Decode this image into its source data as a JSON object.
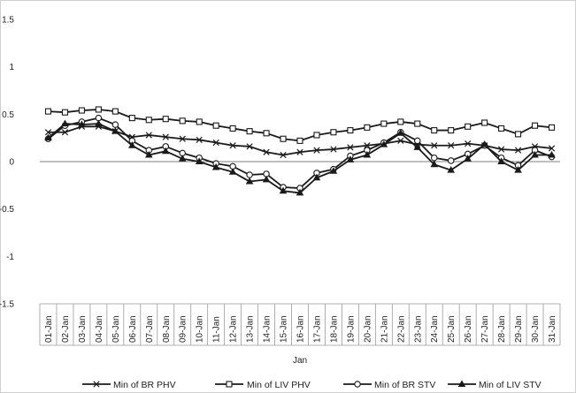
{
  "chart_data": {
    "type": "line",
    "title": "",
    "xlabel": "Jan",
    "ylabel": "",
    "ylim": [
      -1.5,
      1.5
    ],
    "yticks": [
      "1.5",
      "1",
      "0.5",
      "0",
      "-0.5",
      "-1",
      "-1.5"
    ],
    "categories": [
      "01-Jan",
      "02-Jan",
      "03-Jan",
      "04-Jan",
      "05-Jan",
      "06-Jan",
      "07-Jan",
      "08-Jan",
      "09-Jan",
      "10-Jan",
      "11-Jan",
      "12-Jan",
      "13-Jan",
      "14-Jan",
      "15-Jan",
      "16-Jan",
      "17-Jan",
      "18-Jan",
      "19-Jan",
      "20-Jan",
      "21-Jan",
      "22-Jan",
      "23-Jan",
      "24-Jan",
      "25-Jan",
      "26-Jan",
      "27-Jan",
      "28-Jan",
      "29-Jan",
      "30-Jan",
      "31-Jan"
    ],
    "grid": false,
    "legend_position": "bottom",
    "series": [
      {
        "name": "Min of BR PHV",
        "marker": "cross",
        "values": [
          0.31,
          0.31,
          0.37,
          0.37,
          0.32,
          0.26,
          0.28,
          0.26,
          0.24,
          0.23,
          0.2,
          0.17,
          0.16,
          0.1,
          0.07,
          0.1,
          0.12,
          0.13,
          0.15,
          0.17,
          0.19,
          0.22,
          0.18,
          0.17,
          0.17,
          0.19,
          0.17,
          0.13,
          0.12,
          0.16,
          0.14
        ]
      },
      {
        "name": "Min of LIV PHV",
        "marker": "square",
        "values": [
          0.53,
          0.52,
          0.54,
          0.55,
          0.53,
          0.46,
          0.44,
          0.45,
          0.43,
          0.42,
          0.38,
          0.35,
          0.32,
          0.3,
          0.24,
          0.22,
          0.28,
          0.31,
          0.33,
          0.36,
          0.4,
          0.42,
          0.4,
          0.33,
          0.33,
          0.37,
          0.41,
          0.35,
          0.29,
          0.38,
          0.36
        ]
      },
      {
        "name": "Min of BR  STV",
        "marker": "circle",
        "values": [
          0.24,
          0.38,
          0.42,
          0.46,
          0.39,
          0.22,
          0.12,
          0.16,
          0.09,
          0.04,
          -0.02,
          -0.05,
          -0.14,
          -0.13,
          -0.27,
          -0.28,
          -0.12,
          -0.08,
          0.06,
          0.12,
          0.2,
          0.31,
          0.22,
          0.04,
          0.01,
          0.08,
          0.17,
          0.04,
          -0.04,
          0.12,
          0.05
        ]
      },
      {
        "name": "Min of LIV STV",
        "marker": "triangle",
        "values": [
          0.25,
          0.4,
          0.39,
          0.4,
          0.32,
          0.17,
          0.07,
          0.11,
          0.03,
          0.0,
          -0.06,
          -0.11,
          -0.21,
          -0.19,
          -0.31,
          -0.33,
          -0.17,
          -0.1,
          0.02,
          0.07,
          0.18,
          0.3,
          0.15,
          -0.03,
          -0.09,
          0.03,
          0.18,
          0.0,
          -0.09,
          0.07,
          0.07
        ]
      }
    ]
  }
}
